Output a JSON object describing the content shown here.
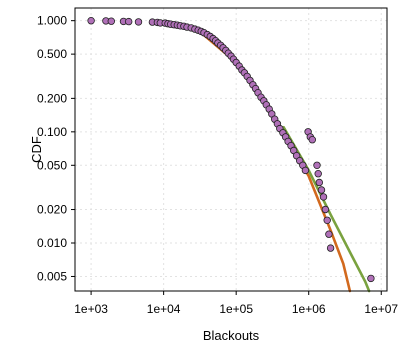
{
  "chart_data": {
    "type": "scatter",
    "xlabel": "Blackouts",
    "ylabel": "CDF",
    "x_scale": "log",
    "y_scale": "log",
    "xlim": [
      600,
      12000000
    ],
    "ylim": [
      0.0037,
      1.3
    ],
    "grid": true,
    "x_ticks": [
      {
        "value": 1000,
        "label": "1e+03"
      },
      {
        "value": 10000,
        "label": "1e+04"
      },
      {
        "value": 100000,
        "label": "1e+05"
      },
      {
        "value": 1000000,
        "label": "1e+06"
      },
      {
        "value": 10000000,
        "label": "1e+07"
      }
    ],
    "y_ticks": [
      {
        "value": 1.0,
        "label": "1.000"
      },
      {
        "value": 0.5,
        "label": "0.500"
      },
      {
        "value": 0.2,
        "label": "0.200"
      },
      {
        "value": 0.1,
        "label": "0.100"
      },
      {
        "value": 0.05,
        "label": "0.050"
      },
      {
        "value": 0.02,
        "label": "0.020"
      },
      {
        "value": 0.01,
        "label": "0.010"
      },
      {
        "value": 0.005,
        "label": "0.005"
      }
    ],
    "points": [
      [
        1000,
        1.0
      ],
      [
        1600,
        0.995
      ],
      [
        1900,
        0.99
      ],
      [
        2800,
        0.985
      ],
      [
        3300,
        0.98
      ],
      [
        4500,
        0.975
      ],
      [
        7000,
        0.97
      ],
      [
        8200,
        0.965
      ],
      [
        9000,
        0.955
      ],
      [
        10500,
        0.95
      ],
      [
        11500,
        0.94
      ],
      [
        12500,
        0.93
      ],
      [
        14000,
        0.92
      ],
      [
        15500,
        0.91
      ],
      [
        17000,
        0.9
      ],
      [
        19000,
        0.89
      ],
      [
        21000,
        0.875
      ],
      [
        24000,
        0.86
      ],
      [
        27000,
        0.84
      ],
      [
        30000,
        0.82
      ],
      [
        33000,
        0.8
      ],
      [
        36000,
        0.78
      ],
      [
        40000,
        0.75
      ],
      [
        44000,
        0.72
      ],
      [
        48000,
        0.69
      ],
      [
        52000,
        0.66
      ],
      [
        56000,
        0.63
      ],
      [
        61000,
        0.6
      ],
      [
        66000,
        0.57
      ],
      [
        72000,
        0.54
      ],
      [
        78000,
        0.51
      ],
      [
        85000,
        0.48
      ],
      [
        92000,
        0.45
      ],
      [
        100000,
        0.42
      ],
      [
        110000,
        0.39
      ],
      [
        120000,
        0.36
      ],
      [
        130000,
        0.34
      ],
      [
        142000,
        0.315
      ],
      [
        155000,
        0.29
      ],
      [
        170000,
        0.265
      ],
      [
        185000,
        0.245
      ],
      [
        200000,
        0.225
      ],
      [
        220000,
        0.205
      ],
      [
        240000,
        0.19
      ],
      [
        260000,
        0.175
      ],
      [
        285000,
        0.16
      ],
      [
        310000,
        0.145
      ],
      [
        340000,
        0.13
      ],
      [
        370000,
        0.118
      ],
      [
        400000,
        0.107
      ],
      [
        440000,
        0.098
      ],
      [
        480000,
        0.09
      ],
      [
        520000,
        0.082
      ],
      [
        570000,
        0.075
      ],
      [
        620000,
        0.068
      ],
      [
        680000,
        0.061
      ],
      [
        750000,
        0.055
      ],
      [
        830000,
        0.05
      ],
      [
        900000,
        0.045
      ],
      [
        980000,
        0.1
      ],
      [
        1050000,
        0.09
      ],
      [
        1120000,
        0.085
      ],
      [
        1300000,
        0.05
      ],
      [
        1350000,
        0.042
      ],
      [
        1400000,
        0.035
      ],
      [
        1500000,
        0.03
      ],
      [
        1600000,
        0.026
      ],
      [
        1700000,
        0.02
      ],
      [
        1800000,
        0.016
      ],
      [
        1900000,
        0.012
      ],
      [
        2000000,
        0.009
      ],
      [
        7200000,
        0.0048
      ]
    ],
    "fit_lines": [
      {
        "color": "#d2691e",
        "points": [
          [
            30000,
            0.82
          ],
          [
            100000,
            0.42
          ],
          [
            300000,
            0.15
          ],
          [
            1000000,
            0.04
          ],
          [
            2000000,
            0.013
          ],
          [
            3000000,
            0.0065
          ],
          [
            3700000,
            0.0037
          ]
        ]
      },
      {
        "color": "#7aa23f",
        "points": [
          [
            450000,
            0.11
          ],
          [
            1000000,
            0.045
          ],
          [
            2000000,
            0.018
          ],
          [
            4000000,
            0.0075
          ],
          [
            6000000,
            0.0045
          ],
          [
            6800000,
            0.0037
          ]
        ]
      }
    ],
    "colors": {
      "points": "#b070b8",
      "point_edge": "#222222",
      "grid": "#e2e2e2",
      "frame": "#000000"
    }
  }
}
